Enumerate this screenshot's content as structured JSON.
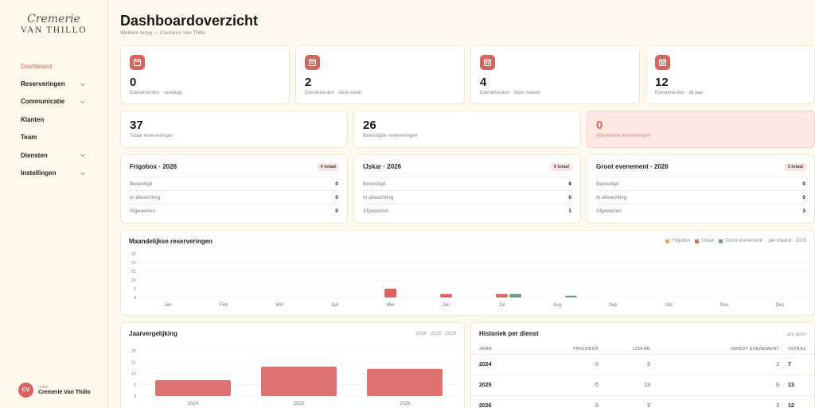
{
  "brand": {
    "script": "Cremerie",
    "name": "VAN THILLO"
  },
  "nav": [
    {
      "label": "Dashboard",
      "active": true,
      "dropdown": false
    },
    {
      "label": "Reserveringen",
      "dropdown": true
    },
    {
      "label": "Communicatie",
      "dropdown": true
    },
    {
      "label": "Klanten",
      "dropdown": false
    },
    {
      "label": "Team",
      "dropdown": false
    },
    {
      "label": "Diensten",
      "dropdown": true
    },
    {
      "label": "Instellingen",
      "dropdown": true
    }
  ],
  "user": {
    "initials": "CV",
    "greeting": "Hallo",
    "name": "Cremerie Van Thillo"
  },
  "page": {
    "title": "Dashboardoverzicht",
    "subtitle": "Welkom terug — Cremerie Van Thillo"
  },
  "events": [
    {
      "value": "0",
      "label": "Evenementen · vandaag",
      "icon": "calendar-today-icon"
    },
    {
      "value": "2",
      "label": "Evenementen · deze week",
      "icon": "calendar-week-icon"
    },
    {
      "value": "4",
      "label": "Evenementen · deze maand",
      "icon": "calendar-month-icon"
    },
    {
      "value": "12",
      "label": "Evenementen · dit jaar",
      "icon": "calendar-year-icon"
    }
  ],
  "reservations": [
    {
      "value": "37",
      "label": "Totaal reserveringen"
    },
    {
      "value": "26",
      "label": "Bevestigde reserveringen"
    },
    {
      "value": "0",
      "label": "Wachtende reserveringen"
    }
  ],
  "services": [
    {
      "title": "Frigobox · 2026",
      "badge": "0 totaal",
      "rows": [
        {
          "label": "Bevestigd",
          "value": "0"
        },
        {
          "label": "In afwachting",
          "value": "0"
        },
        {
          "label": "Afgewezen",
          "value": "0"
        }
      ]
    },
    {
      "title": "IJskar · 2026",
      "badge": "9 totaal",
      "rows": [
        {
          "label": "Bevestigd",
          "value": "8"
        },
        {
          "label": "In afwachting",
          "value": "0"
        },
        {
          "label": "Afgewezen",
          "value": "1"
        }
      ]
    },
    {
      "title": "Groot evenement · 2026",
      "badge": "3 totaal",
      "rows": [
        {
          "label": "Bevestigd",
          "value": "0"
        },
        {
          "label": "In afwachting",
          "value": "0"
        },
        {
          "label": "Afgewezen",
          "value": "3"
        }
      ]
    }
  ],
  "monthly": {
    "title": "Maandelijkse reserveringen",
    "legend_suffix": "per maand · 2026",
    "colors": {
      "Frigobox": "#f0a35e",
      "IJskar": "#d9645f",
      "Groot evenement": "#6a9a99"
    }
  },
  "yearly": {
    "title": "Jaarvergelijking",
    "years_label": "2024 · 2025 · 2026"
  },
  "history": {
    "title": "Historiek per dienst",
    "filter": "alle jaren",
    "headers": [
      "JAAR",
      "FRIGOBOX",
      "IJSKAR",
      "GROOT EVENEMENT",
      "TOTAAL"
    ],
    "rows": [
      [
        "2024",
        "0",
        "5",
        "2",
        "7"
      ],
      [
        "2025",
        "0",
        "13",
        "0",
        "13"
      ],
      [
        "2026",
        "0",
        "9",
        "3",
        "12"
      ]
    ]
  },
  "chart_data": [
    {
      "type": "bar",
      "title": "Maandelijkse reserveringen",
      "categories": [
        "Jan",
        "Feb",
        "Mrt",
        "Apr",
        "Mei",
        "Jun",
        "Jul",
        "Aug",
        "Sep",
        "Okt",
        "Nov",
        "Dec"
      ],
      "series": [
        {
          "name": "Frigobox",
          "values": [
            0,
            0,
            0,
            0,
            0,
            0,
            0,
            0,
            0,
            0,
            0,
            0
          ]
        },
        {
          "name": "IJskar",
          "values": [
            0,
            0,
            0,
            0,
            5,
            2,
            2,
            0,
            0,
            0,
            0,
            0
          ]
        },
        {
          "name": "Groot evenement",
          "values": [
            0,
            0,
            0,
            0,
            0,
            0,
            2,
            1,
            0,
            0,
            0,
            0
          ]
        }
      ],
      "yticks": [
        0,
        5,
        10,
        15,
        20,
        25
      ],
      "ylim": [
        0,
        25
      ],
      "legend": "top-right",
      "grid": true
    },
    {
      "type": "bar",
      "title": "Jaarvergelijking",
      "categories": [
        "2024",
        "2025",
        "2026"
      ],
      "values": [
        7,
        13,
        12
      ],
      "yticks": [
        0,
        5,
        10,
        15,
        20
      ],
      "ylim": [
        0,
        20
      ],
      "grid": true
    }
  ]
}
